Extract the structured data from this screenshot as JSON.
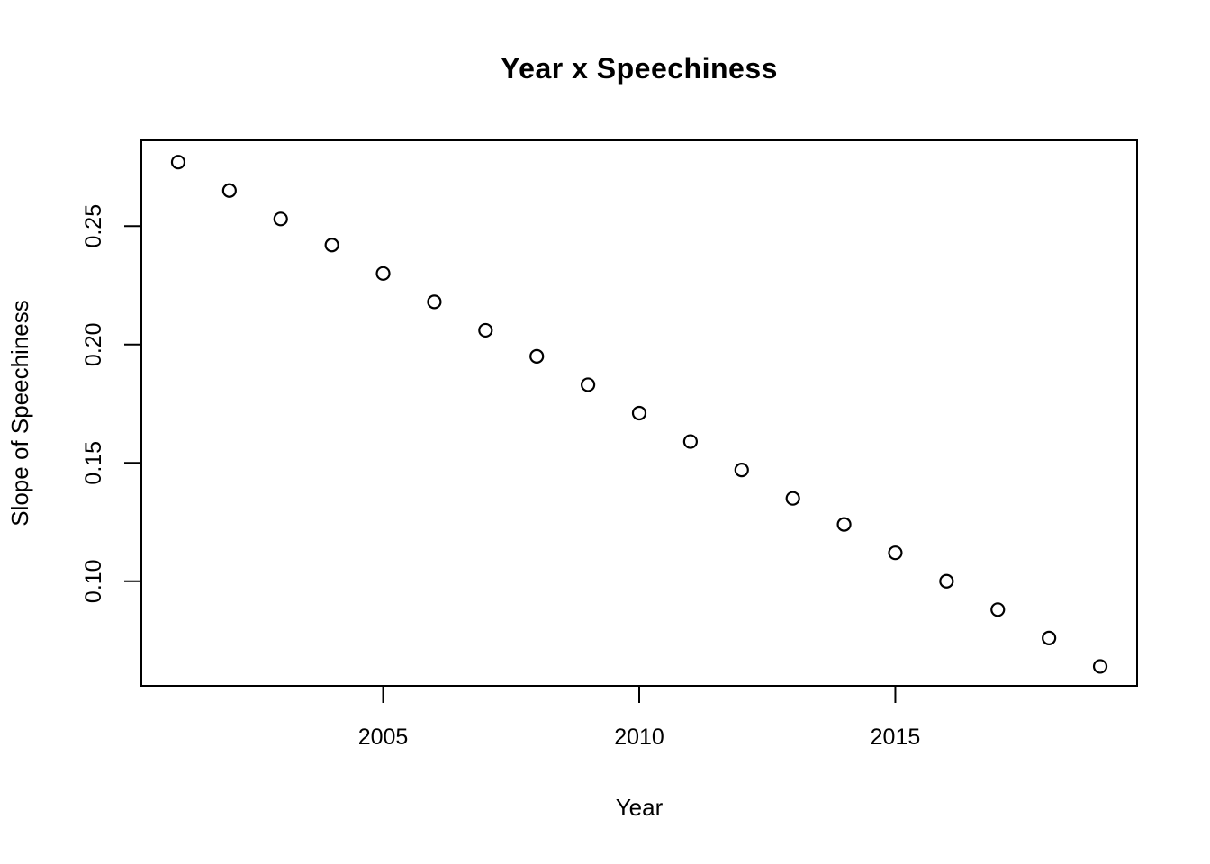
{
  "page": {
    "background": "#ffffff",
    "foreground": "#000000"
  },
  "chart_data": {
    "type": "scatter",
    "title": "Year x Speechiness",
    "xlabel": "Year",
    "ylabel": "Slope of Speechiness",
    "x": [
      2001,
      2002,
      2003,
      2004,
      2005,
      2006,
      2007,
      2008,
      2009,
      2010,
      2011,
      2012,
      2013,
      2014,
      2015,
      2016,
      2017,
      2018,
      2019
    ],
    "y": [
      0.277,
      0.265,
      0.253,
      0.242,
      0.23,
      0.218,
      0.206,
      0.195,
      0.183,
      0.171,
      0.159,
      0.147,
      0.135,
      0.124,
      0.112,
      0.1,
      0.088,
      0.076,
      0.064
    ],
    "xlim": [
      2000.28,
      2019.72
    ],
    "ylim": [
      0.0558,
      0.2862
    ],
    "x_ticks": {
      "values": [
        2005,
        2010,
        2015
      ],
      "labels": [
        "2005",
        "2010",
        "2015"
      ]
    },
    "y_ticks": {
      "values": [
        0.1,
        0.15,
        0.2,
        0.25
      ],
      "labels": [
        "0.10",
        "0.15",
        "0.20",
        "0.25"
      ]
    },
    "style": {
      "point_shape": "open-circle",
      "point_color": "#000000",
      "point_fill": "none",
      "axis_color": "#000000",
      "grid": false,
      "legend": false
    }
  }
}
